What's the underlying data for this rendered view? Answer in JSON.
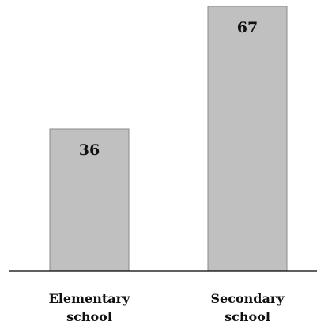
{
  "chart_data": {
    "type": "bar",
    "title": "",
    "xlabel": "",
    "ylabel": "",
    "categories": [
      "Elementary school",
      "Secondary school"
    ],
    "category_label_lines": [
      [
        "Elementary",
        "school"
      ],
      [
        "Secondary",
        "school"
      ]
    ],
    "values": [
      36,
      67
    ],
    "value_labels": [
      "36",
      "67"
    ],
    "ylim": [
      0,
      67
    ],
    "grid": false,
    "legend": "none",
    "colors": {
      "bar_fill": "#c0c0c0",
      "bar_stroke": "#8a8a8a",
      "axis": "#000000"
    }
  }
}
